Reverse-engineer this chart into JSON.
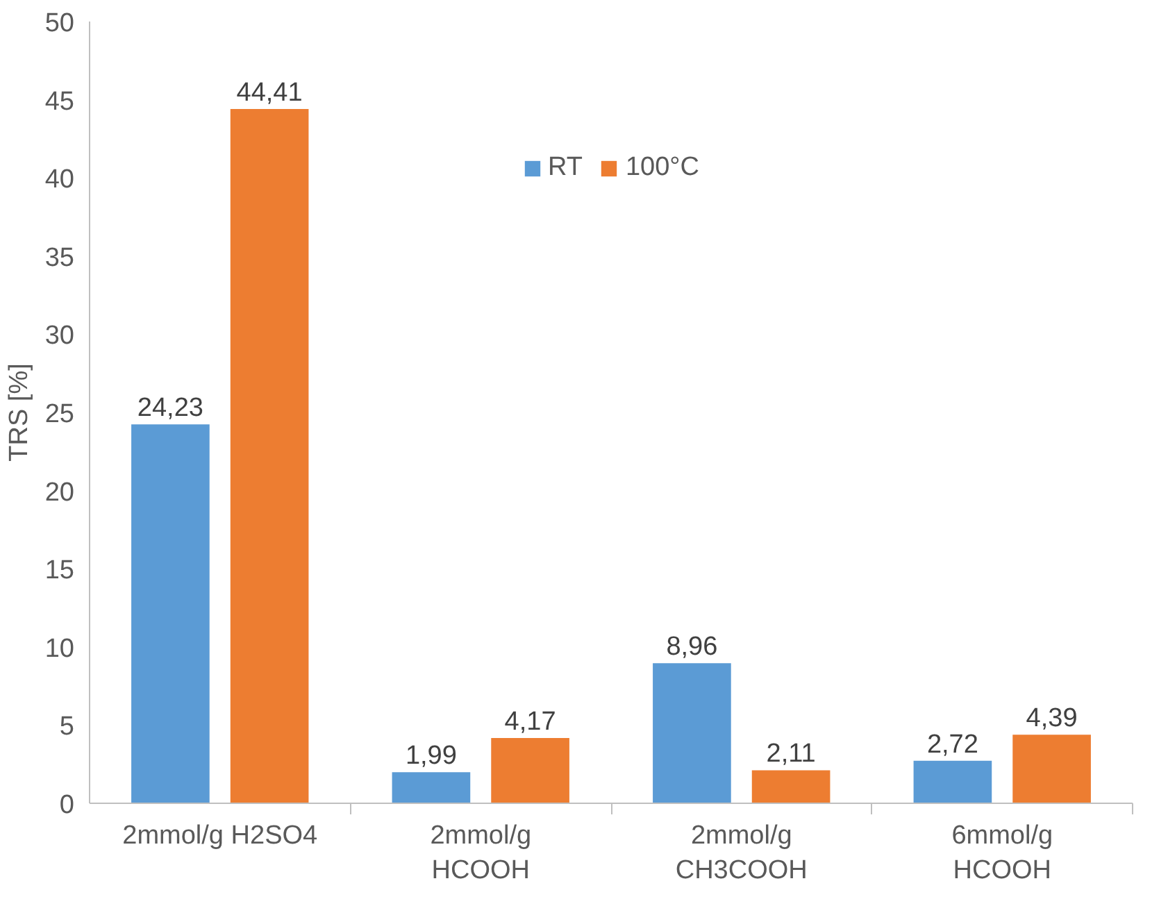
{
  "chart_data": {
    "type": "bar",
    "ylabel": "TRS [%]",
    "categories": [
      "2mmol/g H2SO4",
      "2mmol/g\nHCOOH",
      "2mmol/g\nCH3COOH",
      "6mmol/g\nHCOOH"
    ],
    "series": [
      {
        "name": "RT",
        "color": "#5b9bd5",
        "values": [
          24.23,
          1.99,
          8.96,
          2.72
        ],
        "value_labels": [
          "24,23",
          "1,99",
          "8,96",
          "2,72"
        ]
      },
      {
        "name": "100°C",
        "color": "#ed7d31",
        "values": [
          44.41,
          4.17,
          2.11,
          4.39
        ],
        "value_labels": [
          "44,41",
          "4,17",
          "2,11",
          "4,39"
        ]
      }
    ],
    "ylim": [
      0,
      50
    ],
    "yticks": [
      0,
      5,
      10,
      15,
      20,
      25,
      30,
      35,
      40,
      45,
      50
    ],
    "grid": false,
    "legend": "top"
  }
}
